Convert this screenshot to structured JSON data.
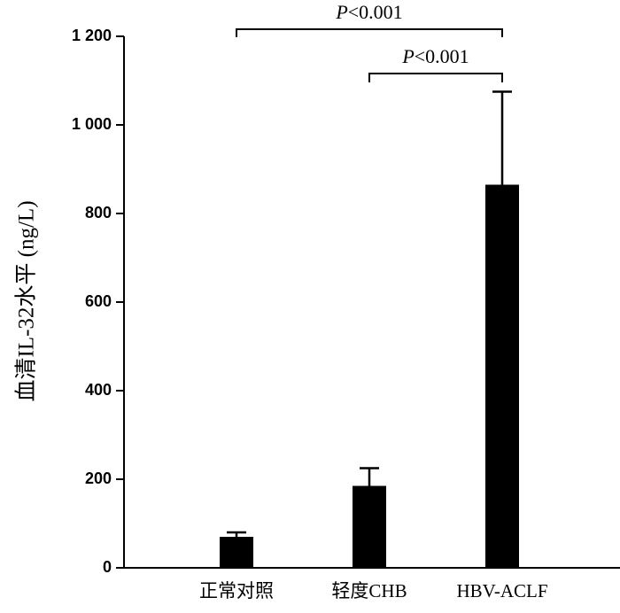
{
  "chart_data": {
    "type": "bar",
    "y_label": "血清IL-32水平 (ng/L)",
    "categories": [
      "正常对照",
      "轻度CHB",
      "HBV-ACLF"
    ],
    "values": [
      70,
      185,
      865
    ],
    "errors": [
      10,
      40,
      210
    ],
    "color": "#000000",
    "ylim": [
      0,
      1200
    ],
    "yticks": [
      0,
      200,
      400,
      600,
      800,
      {
        "value": 1000,
        "label": "1 000"
      },
      {
        "value": 1200,
        "label": "1 200"
      }
    ],
    "annotations": [
      "P<0.001",
      "P<0.001"
    ]
  }
}
